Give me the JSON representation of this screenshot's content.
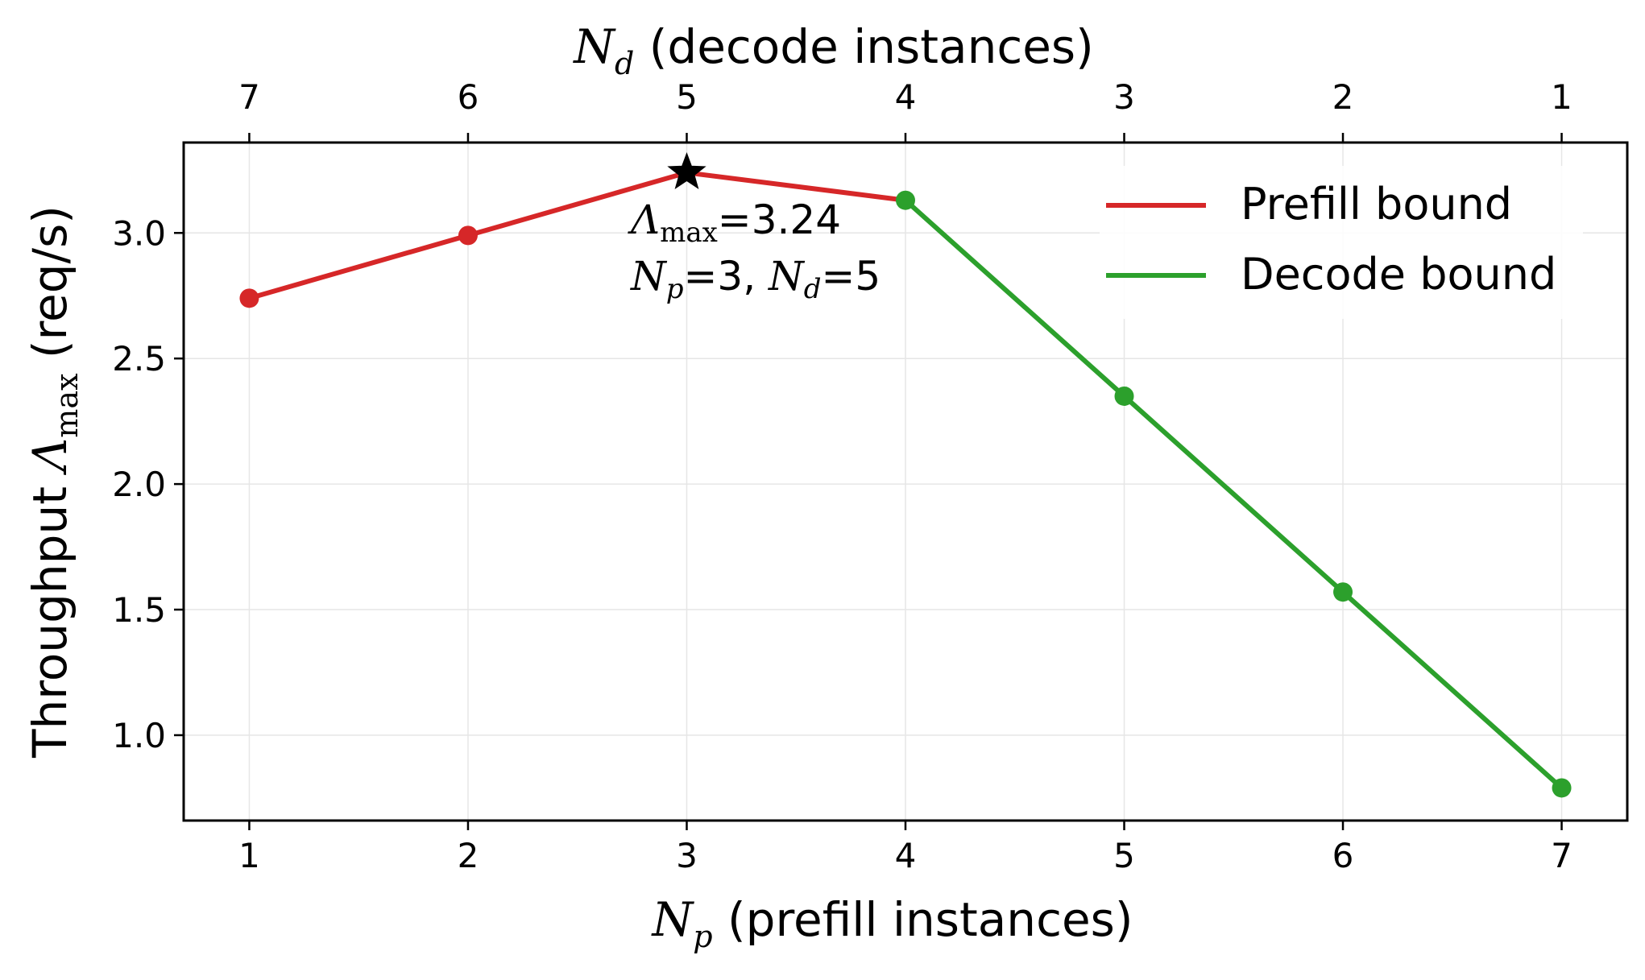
{
  "chart_data": {
    "type": "line",
    "x_label_prefix": "N",
    "x_label_sub": "p",
    "x_label_suffix": " (prefill instances)",
    "top_label_prefix": "N",
    "top_label_sub": "d",
    "top_label_suffix": " (decode instances)",
    "y_label_prefix": "Throughput ",
    "y_label_symbol": "Λ",
    "y_label_sub": "max",
    "y_label_suffix": "  (req/s)",
    "x_ticks": [
      "1",
      "2",
      "3",
      "4",
      "5",
      "6",
      "7"
    ],
    "top_ticks": [
      "7",
      "6",
      "5",
      "4",
      "3",
      "2",
      "1"
    ],
    "y_ticks": [
      "1.0",
      "1.5",
      "2.0",
      "2.5",
      "3.0"
    ],
    "xlim": [
      0.7,
      7.3
    ],
    "ylim": [
      0.66,
      3.36
    ],
    "grid": true,
    "legend_position": "top-right",
    "series": [
      {
        "name": "Prefill bound",
        "color": "#d62728",
        "x": [
          1,
          2,
          3,
          4
        ],
        "y": [
          2.74,
          2.99,
          3.24,
          3.13
        ],
        "marker_x": [
          1,
          2
        ]
      },
      {
        "name": "Decode bound",
        "color": "#2ca02c",
        "x": [
          4,
          5,
          6,
          7
        ],
        "y": [
          3.13,
          2.35,
          1.57,
          0.79
        ],
        "marker_x": [
          4,
          5,
          6,
          7
        ]
      }
    ],
    "optimum": {
      "x": 3,
      "y": 3.24,
      "marker": "star",
      "color": "#000000"
    },
    "annotation": {
      "line1_symbol": "Λ",
      "line1_sub": "max",
      "line1_value": "=3.24",
      "line2_n1": "N",
      "line2_sub1": "p",
      "line2_mid": "=3, ",
      "line2_n2": "N",
      "line2_sub2": "d",
      "line2_end": "=5"
    }
  }
}
